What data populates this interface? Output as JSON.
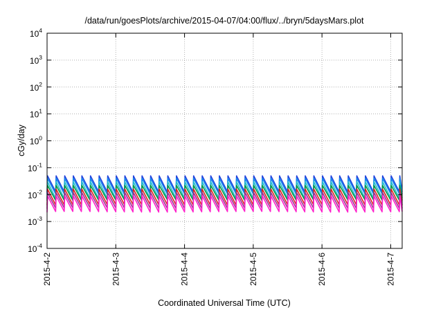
{
  "chart_data": {
    "type": "line",
    "title": "/data/run/goesPlots/archive/2015-04-07/04:00/flux/../bryn/5daysMars.plot",
    "xlabel": "Coordinated Universal Time (UTC)",
    "ylabel": "cGy/day",
    "y_scale": "log",
    "ylim": [
      0.0001,
      10000
    ],
    "y_ticks": [
      {
        "base": "10",
        "exp": "-4",
        "value": 0.0001
      },
      {
        "base": "10",
        "exp": "-3",
        "value": 0.001
      },
      {
        "base": "10",
        "exp": "-2",
        "value": 0.01
      },
      {
        "base": "10",
        "exp": "-1",
        "value": 0.1
      },
      {
        "base": "10",
        "exp": "0",
        "value": 1
      },
      {
        "base": "10",
        "exp": "1",
        "value": 10
      },
      {
        "base": "10",
        "exp": "2",
        "value": 100
      },
      {
        "base": "10",
        "exp": "3",
        "value": 1000
      },
      {
        "base": "10",
        "exp": "4",
        "value": 10000
      }
    ],
    "x_ticks": [
      "2015-4-2",
      "2015-4-3",
      "2015-4-4",
      "2015-4-5",
      "2015-4-6",
      "2015-4-7"
    ],
    "xlim": [
      "2015-04-02T00:00",
      "2015-04-07T04:00"
    ],
    "grid": true,
    "legend": "none",
    "pulse_period_hours": 3,
    "series": [
      {
        "color": "#2244dd",
        "peak": 0.05,
        "trough": 0.012
      },
      {
        "color": "#1188ee",
        "peak": 0.04,
        "trough": 0.01
      },
      {
        "color": "#22bbcc",
        "peak": 0.03,
        "trough": 0.007
      },
      {
        "color": "#009944",
        "peak": 0.022,
        "trough": 0.006
      },
      {
        "color": "#dd2222",
        "peak": 0.016,
        "trough": 0.004
      },
      {
        "color": "#993399",
        "peak": 0.012,
        "trough": 0.003
      },
      {
        "color": "#ff22cc",
        "peak": 0.009,
        "trough": 0.0022
      }
    ]
  }
}
